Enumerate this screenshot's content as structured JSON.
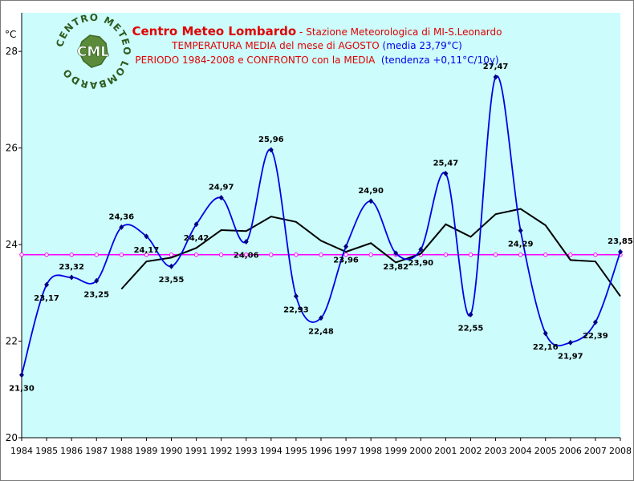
{
  "title": {
    "line1_main": "Centro Meteo Lombardo",
    "line1_sep": " - ",
    "line1_sub": "Stazione Meteorologica di MI-S.Leonardo",
    "line2_main": "TEMPERATURA MEDIA del mese di AGOSTO",
    "line2_blue": "(media 23,79°C)",
    "line3_main": "PERIODO 1984-2008 e CONFRONTO con la MEDIA",
    "line3_blue": "(tendenza +0,11°C/10y)"
  },
  "logo": {
    "ring_text": "CENTRO METEO LOMBARDO",
    "monogram": "CML"
  },
  "colors": {
    "plot_bg": "#ccfcfc",
    "main_series": "#0000e8",
    "trend_series": "#000000",
    "mean_line": "#ff00ff",
    "title_red": "#e00000",
    "title_blue": "#0000e8"
  },
  "chart_data": {
    "type": "line",
    "ylabel": "°C",
    "ylim": [
      20,
      28.8
    ],
    "yticks": [
      20,
      22,
      24,
      26,
      28
    ],
    "grid": false,
    "legend": "none",
    "categories": [
      "1984",
      "1985",
      "1986",
      "1987",
      "1988",
      "1989",
      "1990",
      "1991",
      "1992",
      "1993",
      "1994",
      "1995",
      "1996",
      "1997",
      "1998",
      "1999",
      "2000",
      "2001",
      "2002",
      "2003",
      "2004",
      "2005",
      "2006",
      "2007",
      "2008"
    ],
    "series": [
      {
        "role": "main",
        "values": [
          21.3,
          23.17,
          23.32,
          23.25,
          24.36,
          24.17,
          23.55,
          24.42,
          24.97,
          24.06,
          25.96,
          22.93,
          22.48,
          23.96,
          24.9,
          23.82,
          23.9,
          25.47,
          22.55,
          27.47,
          24.29,
          22.16,
          21.97,
          22.39,
          23.85
        ],
        "labels": [
          "21,30",
          "23,17",
          "23,32",
          "23,25",
          "24,36",
          "24,17",
          "23,55",
          "24,42",
          "24,97",
          "24,06",
          "25,96",
          "22,93",
          "22,48",
          "23,96",
          "24,90",
          "23,82",
          "23,90",
          "25,47",
          "22,55",
          "27,47",
          "24,29",
          "22,16",
          "21,97",
          "22,39",
          "23,85"
        ]
      },
      {
        "role": "moving-average",
        "x": [
          "1988",
          "1989",
          "1990",
          "1991",
          "1992",
          "1993",
          "1994",
          "1995",
          "1996",
          "1997",
          "1998",
          "1999",
          "2000",
          "2001",
          "2002",
          "2003",
          "2004",
          "2005",
          "2006",
          "2007",
          "2008"
        ],
        "values": [
          23.08,
          23.65,
          23.73,
          23.93,
          24.3,
          24.28,
          24.58,
          24.47,
          24.08,
          23.85,
          24.03,
          23.63,
          23.81,
          24.42,
          24.16,
          24.63,
          24.74,
          24.4,
          23.68,
          23.65,
          22.93
        ]
      },
      {
        "role": "mean",
        "values": [
          23.79,
          23.79,
          23.79,
          23.79,
          23.79,
          23.79,
          23.79,
          23.79,
          23.79,
          23.79,
          23.79,
          23.79,
          23.79,
          23.79,
          23.79,
          23.79,
          23.79,
          23.79,
          23.79,
          23.79,
          23.79,
          23.79,
          23.79,
          23.79,
          23.79
        ]
      }
    ]
  }
}
